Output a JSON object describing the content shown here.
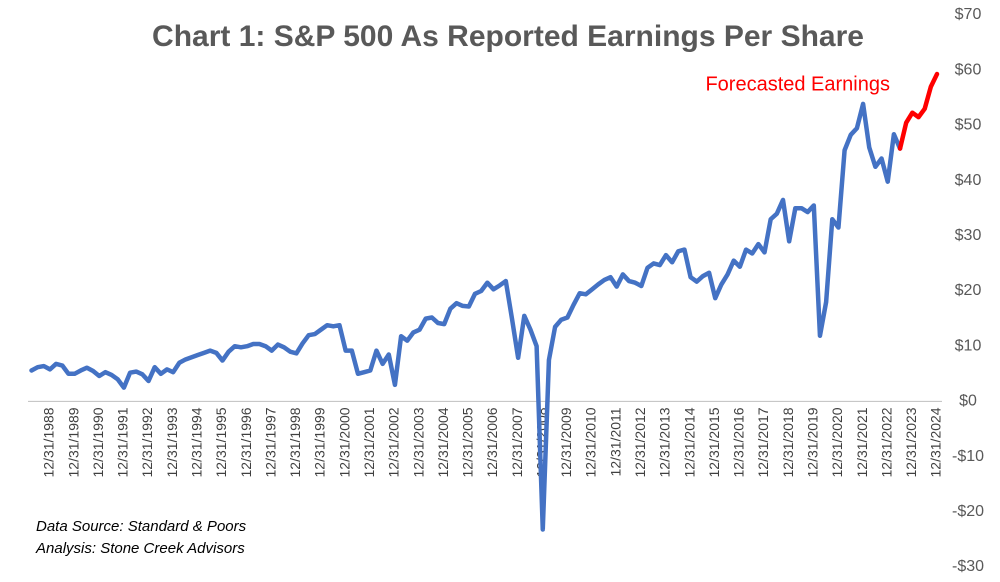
{
  "chart_data": {
    "type": "line",
    "title": "Chart 1: S&P 500 As Reported Earnings Per Share",
    "annotations": [
      "Data Source: Standard & Poors",
      "Analysis: Stone Creek Advisors"
    ],
    "categories": [
      null,
      null,
      null,
      "12/31/1988",
      null,
      null,
      null,
      "12/31/1989",
      null,
      null,
      null,
      "12/31/1990",
      null,
      null,
      null,
      "12/31/1991",
      null,
      null,
      null,
      "12/31/1992",
      null,
      null,
      null,
      "12/31/1993",
      null,
      null,
      null,
      "12/31/1994",
      null,
      null,
      null,
      "12/31/1995",
      null,
      null,
      null,
      "12/31/1996",
      null,
      null,
      null,
      "12/31/1997",
      null,
      null,
      null,
      "12/31/1998",
      null,
      null,
      null,
      "12/31/1999",
      null,
      null,
      null,
      "12/31/2000",
      null,
      null,
      null,
      "12/31/2001",
      null,
      null,
      null,
      "12/31/2002",
      null,
      null,
      null,
      "12/31/2003",
      null,
      null,
      null,
      "12/31/2004",
      null,
      null,
      null,
      "12/31/2005",
      null,
      null,
      null,
      "12/31/2006",
      null,
      null,
      null,
      "12/31/2007",
      null,
      null,
      null,
      "12/31/2008",
      null,
      null,
      null,
      "12/31/2009",
      null,
      null,
      null,
      "12/31/2010",
      null,
      null,
      null,
      "12/31/2011",
      null,
      null,
      null,
      "12/31/2012",
      null,
      null,
      null,
      "12/31/2013",
      null,
      null,
      null,
      "12/31/2014",
      null,
      null,
      null,
      "12/31/2015",
      null,
      null,
      null,
      "12/31/2016",
      null,
      null,
      null,
      "12/31/2017",
      null,
      null,
      null,
      "12/31/2018",
      null,
      null,
      null,
      "12/31/2019",
      null,
      null,
      null,
      "12/31/2020",
      null,
      null,
      null,
      "12/31/2021",
      null,
      null,
      null,
      "12/31/2022",
      null,
      null,
      null,
      "12/31/2023",
      null,
      null,
      null,
      "12/31/2024"
    ],
    "series": [
      {
        "color": "#4472c4",
        "values": [
          5.6,
          6.2,
          6.4,
          5.8,
          6.8,
          6.5,
          5.0,
          5.0,
          5.6,
          6.1,
          5.5,
          4.6,
          5.3,
          4.8,
          4.0,
          2.5,
          5.2,
          5.4,
          4.9,
          3.7,
          6.2,
          5.0,
          5.8,
          5.3,
          7.0,
          7.6,
          8.0,
          8.4,
          8.8,
          9.2,
          8.8,
          7.4,
          9.0,
          10.0,
          9.8,
          10.0,
          10.4,
          10.4,
          10.0,
          9.2,
          10.3,
          9.8,
          9.0,
          8.7,
          10.5,
          12.0,
          12.2,
          13.0,
          13.8,
          13.6,
          13.8,
          9.2,
          9.2,
          5.0,
          5.3,
          5.6,
          9.2,
          6.8,
          8.5,
          3.0,
          11.8,
          11.0,
          12.5,
          13.0,
          15.0,
          15.2,
          14.2,
          14.0,
          16.8,
          17.8,
          17.3,
          17.2,
          19.5,
          20.0,
          21.5,
          20.3,
          21.0,
          21.8,
          15.0,
          7.9,
          15.5,
          13.0,
          10.0,
          -23.2,
          7.5,
          13.5,
          14.8,
          15.2,
          17.5,
          19.6,
          19.4,
          20.3,
          21.2,
          22.0,
          22.5,
          20.8,
          23.0,
          21.8,
          21.5,
          20.9,
          24.2,
          25.0,
          24.7,
          26.5,
          25.2,
          27.2,
          27.5,
          22.5,
          21.7,
          22.7,
          23.3,
          18.7,
          21.2,
          23.0,
          25.5,
          24.4,
          27.5,
          26.8,
          28.5,
          27.0,
          33.0,
          34.0,
          36.5,
          29.0,
          35.0,
          35.0,
          34.3,
          35.5,
          11.9,
          18.0,
          33.0,
          31.5,
          45.5,
          48.3,
          49.5,
          53.9,
          46.0,
          42.5,
          44.0,
          39.8,
          48.4,
          45.8,
          null,
          null,
          null,
          null,
          null,
          null
        ]
      },
      {
        "name": "Forecasted Earnings",
        "color": "#ff0000",
        "values": [
          null,
          null,
          null,
          null,
          null,
          null,
          null,
          null,
          null,
          null,
          null,
          null,
          null,
          null,
          null,
          null,
          null,
          null,
          null,
          null,
          null,
          null,
          null,
          null,
          null,
          null,
          null,
          null,
          null,
          null,
          null,
          null,
          null,
          null,
          null,
          null,
          null,
          null,
          null,
          null,
          null,
          null,
          null,
          null,
          null,
          null,
          null,
          null,
          null,
          null,
          null,
          null,
          null,
          null,
          null,
          null,
          null,
          null,
          null,
          null,
          null,
          null,
          null,
          null,
          null,
          null,
          null,
          null,
          null,
          null,
          null,
          null,
          null,
          null,
          null,
          null,
          null,
          null,
          null,
          null,
          null,
          null,
          null,
          null,
          null,
          null,
          null,
          null,
          null,
          null,
          null,
          null,
          null,
          null,
          null,
          null,
          null,
          null,
          null,
          null,
          null,
          null,
          null,
          null,
          null,
          null,
          null,
          null,
          null,
          null,
          null,
          null,
          null,
          null,
          null,
          null,
          null,
          null,
          null,
          null,
          null,
          null,
          null,
          null,
          null,
          null,
          null,
          null,
          null,
          null,
          null,
          null,
          null,
          null,
          null,
          null,
          null,
          null,
          null,
          null,
          null,
          45.8,
          50.5,
          52.3,
          51.5,
          53.0,
          57.0,
          59.3
        ]
      }
    ],
    "ylim": [
      -30,
      70
    ],
    "yticks": [
      {
        "value": -30,
        "label": "-$30"
      },
      {
        "value": -20,
        "label": "-$20"
      },
      {
        "value": -10,
        "label": "-$10"
      },
      {
        "value": 0,
        "label": "$0"
      },
      {
        "value": 10,
        "label": "$10"
      },
      {
        "value": 20,
        "label": "$20"
      },
      {
        "value": 30,
        "label": "$30"
      },
      {
        "value": 40,
        "label": "$40"
      },
      {
        "value": 50,
        "label": "$50"
      },
      {
        "value": 60,
        "label": "$60"
      },
      {
        "value": 70,
        "label": "$70"
      }
    ],
    "grid": false
  }
}
